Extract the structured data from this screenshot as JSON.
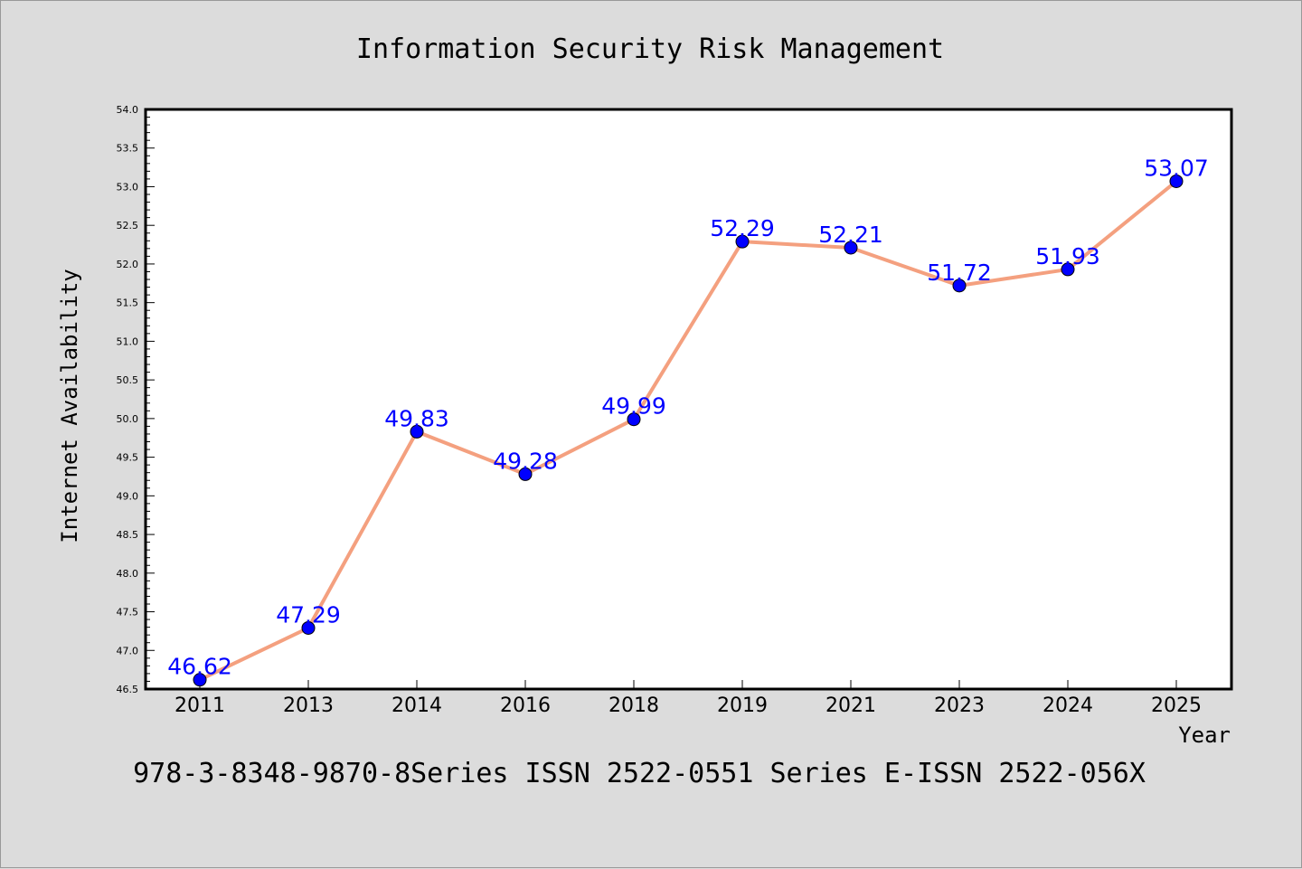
{
  "colors": {
    "background": "#dcdcdc",
    "plot_background": "#ffffff",
    "line": "#f4a07f",
    "marker": "#0000ff",
    "marker_edge": "#000000",
    "data_label": "#0000ff"
  },
  "footer": {
    "text": "978-3-8348-9870-8Series ISSN 2522-0551 Series E-ISSN 2522-056X"
  },
  "chart_data": {
    "type": "line",
    "title": "Information Security Risk Management",
    "xlabel": "Year",
    "ylabel": "Internet Availability",
    "categories": [
      "2011",
      "2013",
      "2014",
      "2016",
      "2018",
      "2019",
      "2021",
      "2023",
      "2024",
      "2025"
    ],
    "values": [
      46.62,
      47.29,
      49.83,
      49.28,
      49.99,
      52.29,
      52.21,
      51.72,
      51.93,
      53.07
    ],
    "data_labels": [
      "46.62",
      "47.29",
      "49.83",
      "49.28",
      "49.99",
      "52.29",
      "52.21",
      "51.72",
      "51.93",
      "53.07"
    ],
    "ylim": [
      46.5,
      54.0
    ],
    "yticks": [
      "46.5",
      "47.0",
      "47.5",
      "48.0",
      "48.5",
      "49.0",
      "49.5",
      "50.0",
      "50.5",
      "51.0",
      "51.5",
      "52.0",
      "52.5",
      "53.0",
      "53.5",
      "54.0"
    ],
    "grid": false,
    "legend": "none"
  }
}
